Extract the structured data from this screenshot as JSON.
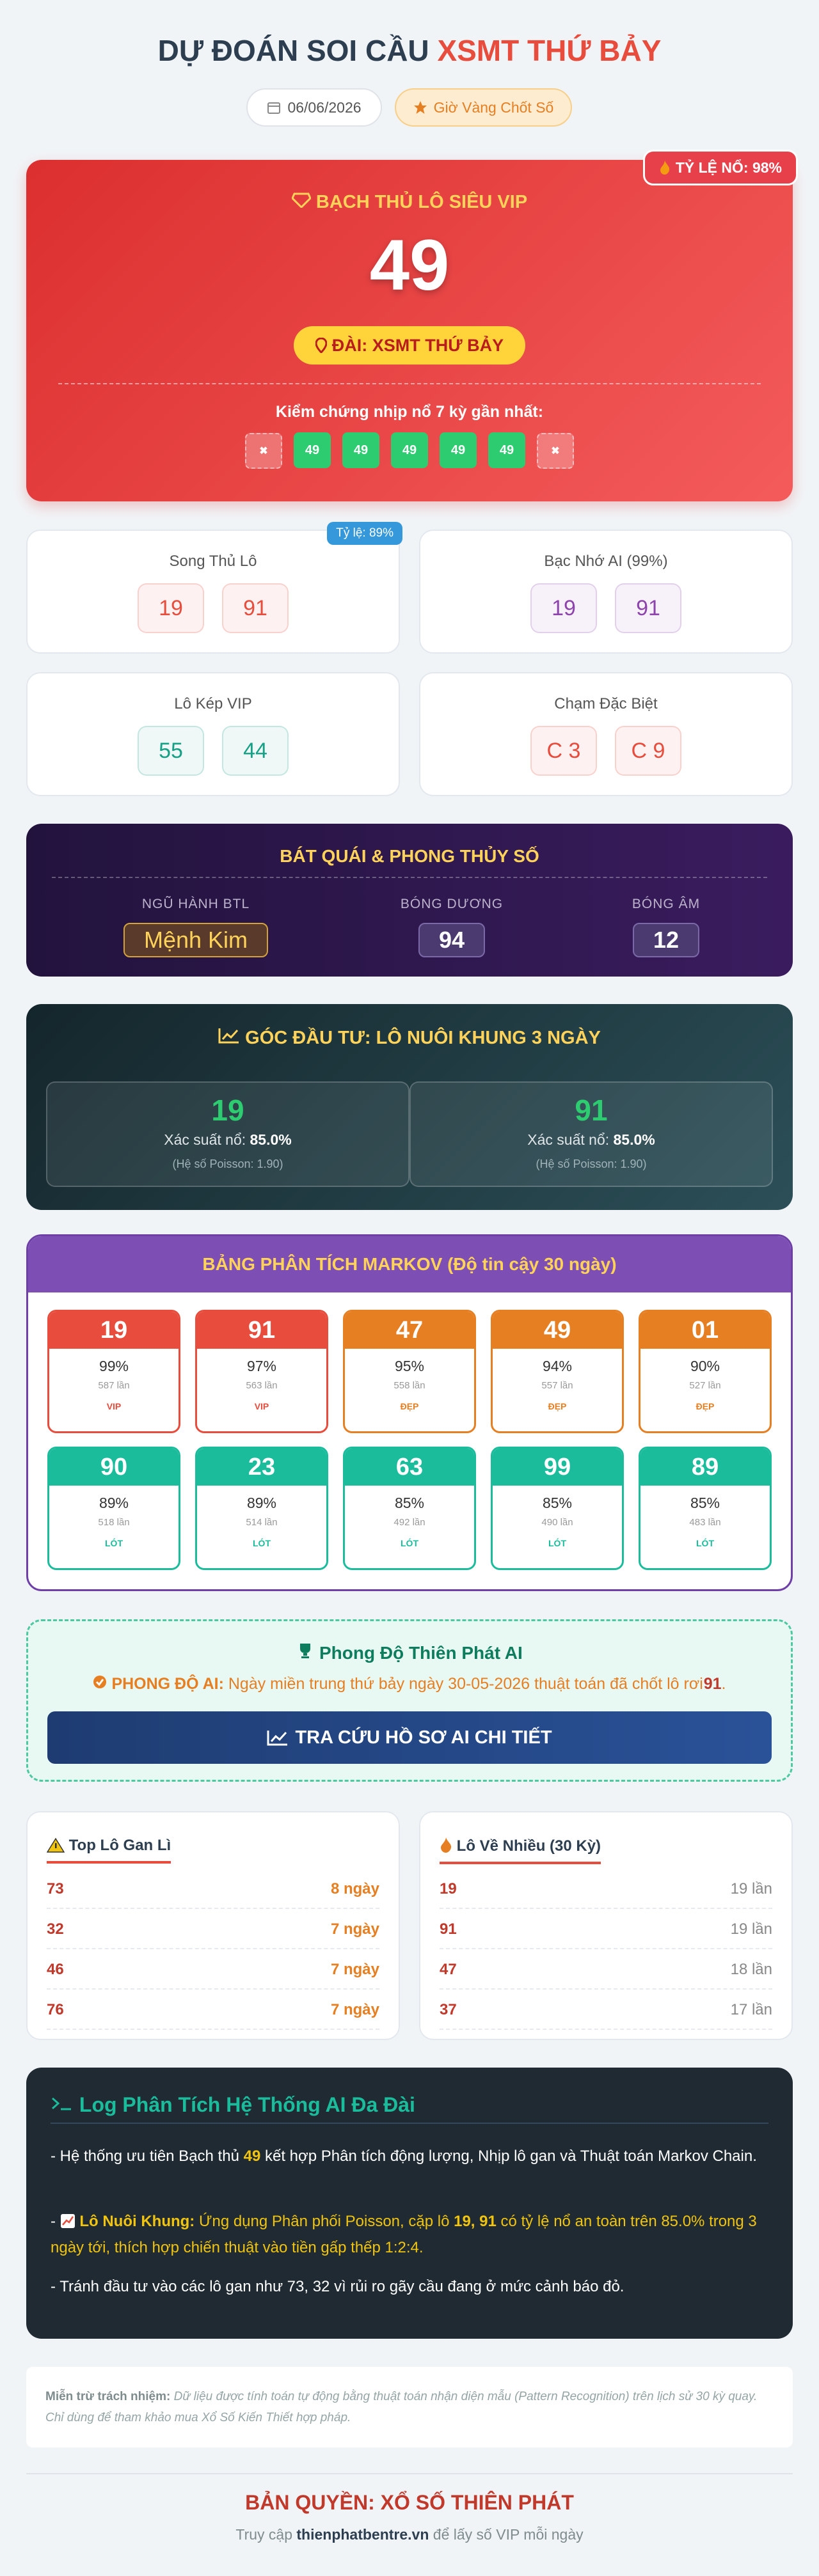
{
  "header": {
    "title_main": "DỰ ĐOÁN SOI CẦU",
    "title_highlight": "XSMT THỨ BẢY",
    "date": "06/06/2026",
    "badge": "Giờ Vàng Chốt Số"
  },
  "vip": {
    "rate_badge": "TỶ LỆ NỔ: 98%",
    "label": "BẠCH THỦ LÔ SIÊU VIP",
    "number": "49",
    "station": "ĐÀI: XSMT THỨ BẢY",
    "history_title": "Kiểm chứng nhịp nổ 7 kỳ gần nhất:",
    "history": [
      "✖",
      "49",
      "49",
      "49",
      "49",
      "49",
      "✖"
    ]
  },
  "predictions": [
    {
      "title": "Song Thủ Lô",
      "badge": "Tỷ lệ: 89%",
      "numbers": [
        "19",
        "91"
      ],
      "color": "#e74c3c"
    },
    {
      "title": "Bạc Nhớ AI (99%)",
      "numbers": [
        "19",
        "91"
      ],
      "color": "#8e44ad"
    },
    {
      "title": "Lô Kép VIP",
      "numbers": [
        "55",
        "44"
      ],
      "color": "#16a085"
    },
    {
      "title": "Chạm Đặc Biệt",
      "numbers": [
        "C 3",
        "C 9"
      ],
      "color": "#e74c3c"
    }
  ],
  "fengshui": {
    "title": "BÁT QUÁI & PHONG THỦY SỐ",
    "items": [
      {
        "label": "NGŨ HÀNH BTL",
        "value": "Mệnh Kim"
      },
      {
        "label": "BÓNG DƯƠNG",
        "value": "94"
      },
      {
        "label": "BÓNG ÂM",
        "value": "12"
      }
    ]
  },
  "investment": {
    "title": "GÓC ĐẦU TƯ: LÔ NUÔI KHUNG 3 NGÀY",
    "items": [
      {
        "number": "19",
        "prob_label": "Xác suất nổ:",
        "prob": "85.0%",
        "poisson": "(Hệ số Poisson: 1.90)"
      },
      {
        "number": "91",
        "prob_label": "Xác suất nổ:",
        "prob": "85.0%",
        "poisson": "(Hệ số Poisson: 1.90)"
      }
    ]
  },
  "markov": {
    "title": "BẢNG PHÂN TÍCH MARKOV (Độ tin cậy 30 ngày)",
    "tiles": [
      {
        "number": "19",
        "rate": "99%",
        "count": "587 lần",
        "tag": "VIP",
        "color": "#e74c3c"
      },
      {
        "number": "91",
        "rate": "97%",
        "count": "563 lần",
        "tag": "VIP",
        "color": "#e74c3c"
      },
      {
        "number": "47",
        "rate": "95%",
        "count": "558 lần",
        "tag": "ĐẸP",
        "color": "#e67e22"
      },
      {
        "number": "49",
        "rate": "94%",
        "count": "557 lần",
        "tag": "ĐẸP",
        "color": "#e67e22"
      },
      {
        "number": "01",
        "rate": "90%",
        "count": "527 lần",
        "tag": "ĐẸP",
        "color": "#e67e22"
      },
      {
        "number": "90",
        "rate": "89%",
        "count": "518 lần",
        "tag": "LÓT",
        "color": "#1abc9c"
      },
      {
        "number": "23",
        "rate": "89%",
        "count": "514 lần",
        "tag": "LÓT",
        "color": "#1abc9c"
      },
      {
        "number": "63",
        "rate": "85%",
        "count": "492 lần",
        "tag": "LÓT",
        "color": "#1abc9c"
      },
      {
        "number": "99",
        "rate": "85%",
        "count": "490 lần",
        "tag": "LÓT",
        "color": "#1abc9c"
      },
      {
        "number": "89",
        "rate": "85%",
        "count": "483 lần",
        "tag": "LÓT",
        "color": "#1abc9c"
      }
    ]
  },
  "performance": {
    "title": "Phong Độ Thiên Phát AI",
    "label": "PHONG ĐỘ AI:",
    "text": "Ngày miền trung thứ bảy ngày 30-05-2026 thuật toán đã chốt lô rơi",
    "number": "91",
    "end": ".",
    "button": "TRA CỨU HỒ SƠ AI CHI TIẾT"
  },
  "lists": [
    {
      "title": "Top Lô Gan Lì",
      "rows": [
        [
          "73",
          "8 ngày"
        ],
        [
          "32",
          "7 ngày"
        ],
        [
          "46",
          "7 ngày"
        ],
        [
          "76",
          "7 ngày"
        ]
      ]
    },
    {
      "title": "Lô Về Nhiều (30 Kỳ)",
      "rows": [
        [
          "19",
          "19 lần"
        ],
        [
          "91",
          "19 lần"
        ],
        [
          "47",
          "18 lần"
        ],
        [
          "37",
          "17 lần"
        ]
      ]
    }
  ],
  "log": {
    "title": "Log Phân Tích Hệ Thống AI Đa Đài",
    "line1": {
      "pre": "- Hệ thống ưu tiên Bạch thủ",
      "num": "49",
      "post": "kết hợp Phân tích động lượng, Nhịp lô gan và Thuật toán Markov Chain."
    },
    "line2": {
      "pre": "-",
      "label": "Lô Nuôi Khung:",
      "text": "Ứng dụng Phân phối Poisson, cặp lô",
      "nums": "19, 91",
      "post": "có tỷ lệ nổ an toàn trên 85.0% trong 3 ngày tới, thích hợp chiến thuật vào tiền gấp thếp 1:2:4."
    },
    "line3": "- Tránh đầu tư vào các lô gan như 73, 32 vì rủi ro gãy cầu đang ở mức cảnh báo đỏ."
  },
  "disclaimer": {
    "label": "Miễn trừ trách nhiệm:",
    "text": "Dữ liệu được tính toán tự động bằng thuật toán nhận diện mẫu (Pattern Recognition) trên lịch sử 30 kỳ quay. Chỉ dùng để tham khảo mua Xổ Số Kiến Thiết hợp pháp."
  },
  "footer": {
    "copyright": "BẢN QUYỀN: XỔ SỐ THIÊN PHÁT",
    "pre": "Truy cập",
    "site": "thienphatbentre.vn",
    "post": "để lấy số VIP mỗi ngày"
  }
}
